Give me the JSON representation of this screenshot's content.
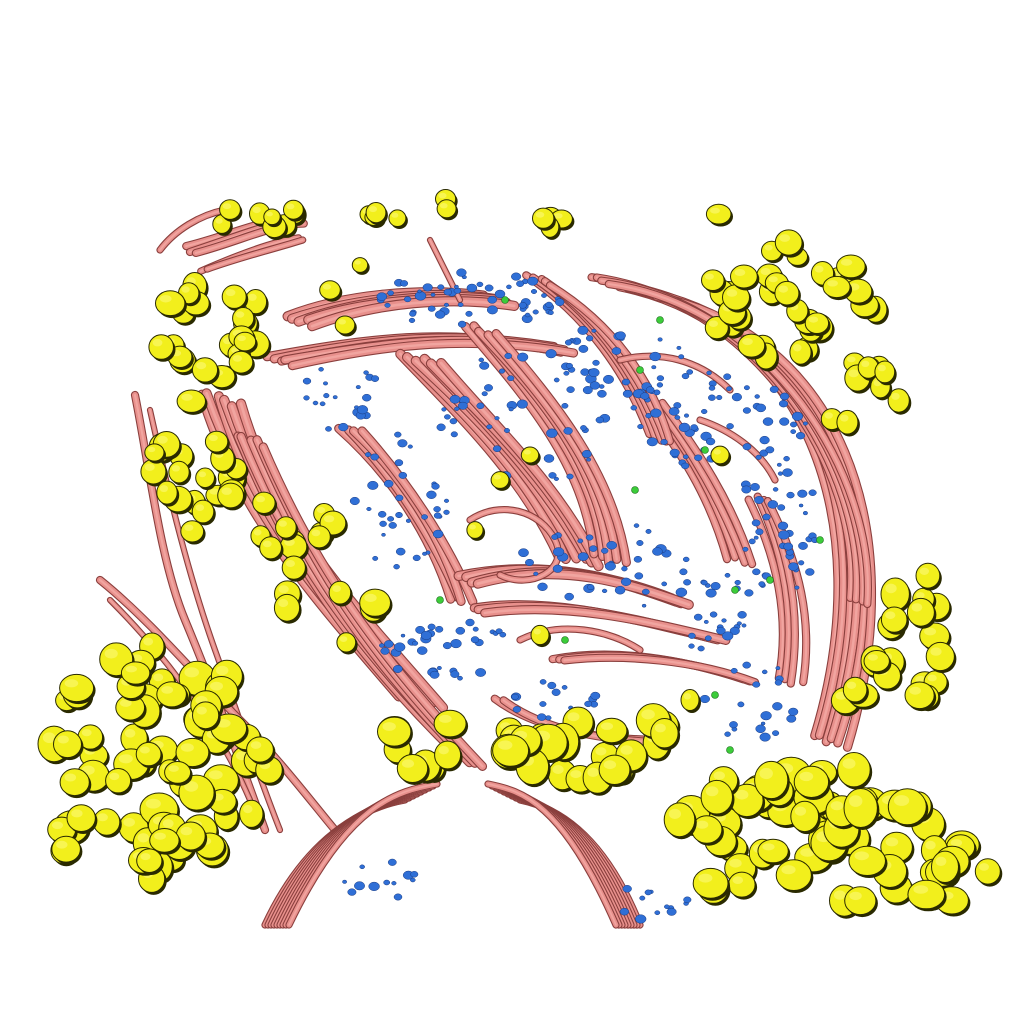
{
  "image": {
    "kind": "3d-render",
    "background": "#ffffff",
    "colors": {
      "fiber": "#e8908c",
      "fiber_light": "#f2aaa5",
      "fiber_edge": "#8a3f3d",
      "cell": "#f2ef1c",
      "cell_light": "#fbf86a",
      "cell_edge": "#2a2a00",
      "blue_particle": "#2f6fd6",
      "green_particle": "#3ccc3a"
    },
    "structures": [
      {
        "id": "fibers",
        "label": "",
        "color": "#e8908c"
      },
      {
        "id": "cells",
        "label": "",
        "color": "#f2ef1c"
      },
      {
        "id": "blue-particles",
        "label": "",
        "color": "#2f6fd6"
      },
      {
        "id": "green-particles",
        "label": "",
        "color": "#3ccc3a"
      }
    ]
  }
}
